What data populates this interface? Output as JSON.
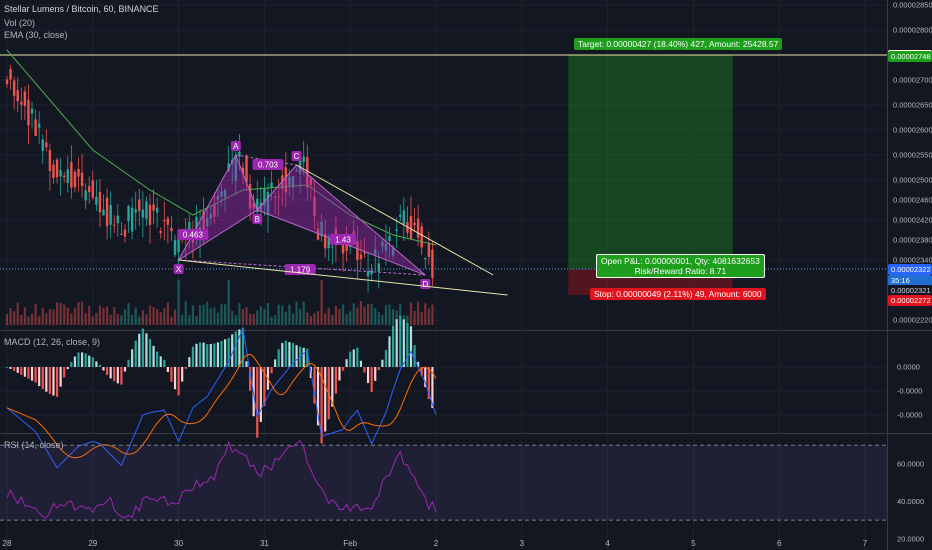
{
  "header": {
    "title": "Stellar Lumens / Bitcoin, 60, BINANCE",
    "vol_label": "Vol (20)",
    "ema_label": "EMA (30, close)",
    "macd_label": "MACD (12, 26, close, 9)",
    "rsi_label": "RSI (14, close)"
  },
  "chart_data": [
    {
      "type": "candlestick",
      "pair": "Stellar Lumens / Bitcoin",
      "timeframe": "60",
      "exchange": "BINANCE",
      "ylim": [
        2.2e-05,
        2.86e-05
      ],
      "y_ticks": [
        "0.00002850",
        "0.00002800",
        "0.00002750",
        "0.00002700",
        "0.00002650",
        "0.00002600",
        "0.00002550",
        "0.00002500",
        "0.00002460",
        "0.00002420",
        "0.00002380",
        "0.00002340",
        "0.00002300",
        "0.00002220"
      ],
      "y_tick_values": [
        2.85e-05,
        2.8e-05,
        2.75e-05,
        2.7e-05,
        2.65e-05,
        2.6e-05,
        2.55e-05,
        2.5e-05,
        2.46e-05,
        2.42e-05,
        2.38e-05,
        2.34e-05,
        2.3e-05,
        2.22e-05
      ],
      "x_ticks": [
        "28",
        "29",
        "30",
        "31",
        "Feb",
        "2",
        "3",
        "4",
        "5",
        "6",
        "7"
      ],
      "x_tick_values": [
        0,
        24,
        48,
        72,
        96,
        120,
        144,
        168,
        192,
        216,
        240
      ],
      "bar_count": 120,
      "anchors": [
        [
          0,
          2.72e-05
        ],
        [
          8,
          2.62e-05
        ],
        [
          14,
          2.52e-05
        ],
        [
          20,
          2.5e-05
        ],
        [
          26,
          2.46e-05
        ],
        [
          32,
          2.4e-05
        ],
        [
          38,
          2.44e-05
        ],
        [
          44,
          2.42e-05
        ],
        [
          48,
          2.36e-05
        ],
        [
          56,
          2.42e-05
        ],
        [
          62,
          2.49e-05
        ],
        [
          66,
          2.55e-05
        ],
        [
          70,
          2.43e-05
        ],
        [
          74,
          2.47e-05
        ],
        [
          80,
          2.51e-05
        ],
        [
          84,
          2.53e-05
        ],
        [
          88,
          2.39e-05
        ],
        [
          94,
          2.37e-05
        ],
        [
          98,
          2.38e-05
        ],
        [
          102,
          2.32e-05
        ],
        [
          106,
          2.35e-05
        ],
        [
          110,
          2.4e-05
        ],
        [
          113,
          2.42e-05
        ],
        [
          117,
          2.37e-05
        ],
        [
          120,
          2.32e-05
        ]
      ],
      "ema_anchors": [
        [
          0,
          2.76e-05
        ],
        [
          12,
          2.66e-05
        ],
        [
          24,
          2.56e-05
        ],
        [
          40,
          2.48e-05
        ],
        [
          52,
          2.43e-05
        ],
        [
          66,
          2.48e-05
        ],
        [
          84,
          2.49e-05
        ],
        [
          96,
          2.43e-05
        ],
        [
          108,
          2.39e-05
        ],
        [
          120,
          2.37e-05
        ]
      ],
      "harmonic_pattern": {
        "points": [
          {
            "label": "X",
            "bar": 48,
            "price": 2.34e-05
          },
          {
            "label": "A",
            "bar": 64,
            "price": 2.55e-05
          },
          {
            "label": "B",
            "bar": 70,
            "price": 2.44e-05
          },
          {
            "label": "C",
            "bar": 81,
            "price": 2.53e-05
          },
          {
            "label": "D",
            "bar": 117,
            "price": 2.31e-05
          }
        ],
        "ratios": [
          {
            "label": "0.703",
            "bar": 73,
            "price": 2.53e-05
          },
          {
            "label": "0.463",
            "bar": 52,
            "price": 2.39e-05
          },
          {
            "label": "1.179",
            "bar": 82,
            "price": 2.32e-05
          },
          {
            "label": "1.43",
            "bar": 94,
            "price": 2.38e-05
          }
        ]
      },
      "trendlines": [
        {
          "from": [
            81,
            2.53e-05
          ],
          "to": [
            136,
            2.31e-05
          ]
        },
        {
          "from": [
            48,
            2.34e-05
          ],
          "to": [
            140,
            2.27e-05
          ]
        }
      ],
      "price_markers": [
        {
          "label": "0.00002750",
          "price": 2.75e-05,
          "color": "#fffde7",
          "text_color": "#131722"
        },
        {
          "label": "0.00002748",
          "price": 2.748e-05,
          "color": "#1d9e1d",
          "text_color": "#ffffff"
        },
        {
          "label": "0.00002322",
          "price": 2.322e-05,
          "color": "#2962ff",
          "text_color": "#ffffff"
        },
        {
          "label": "35:16",
          "price": 2.3e-05,
          "color": "#1e6fd1",
          "text_color": "#ffffff"
        },
        {
          "label": "0.00002321",
          "price": 2.28e-05,
          "color": "#131722",
          "text_color": "#d1d4dc"
        },
        {
          "label": "0.00002272",
          "price": 2.26e-05,
          "color": "#e0141e",
          "text_color": "#ffffff"
        }
      ],
      "position": {
        "entry": 2.322e-05,
        "target_price": 2.75e-05,
        "stop_price": 2.27e-05,
        "start_bar": 157,
        "end_bar": 203,
        "target_label": "Target: 0.00000427 (18.40%) 427, Amount: 25428.57",
        "stop_label": "Stop: 0.00000049 (2.11%) 49, Amount: 6000",
        "pnl_label": "Open P&L: 0.00000001, Qty: 4081632653",
        "rr_label": "Risk/Reward Ratio: 8.71"
      }
    },
    {
      "type": "bar",
      "name": "Vol (20)",
      "pane": "volume"
    },
    {
      "type": "line",
      "name": "MACD (12, 26, close, 9)",
      "y_ticks": [
        "0.0000",
        "-0.0000",
        "-0.0000"
      ],
      "y_tick_values": [
        0,
        -0.4,
        -0.8
      ],
      "ylim": [
        -1.1,
        0.6
      ]
    },
    {
      "type": "line",
      "name": "RSI (14, close)",
      "y_ticks": [
        "60.0000",
        "40.0000",
        "20.0000"
      ],
      "y_tick_values": [
        60,
        40,
        20
      ],
      "ylim": [
        14,
        76
      ],
      "bands": [
        70,
        30
      ],
      "anchors": [
        [
          0,
          44
        ],
        [
          6,
          38
        ],
        [
          10,
          32
        ],
        [
          16,
          40
        ],
        [
          22,
          34
        ],
        [
          28,
          42
        ],
        [
          34,
          30
        ],
        [
          40,
          44
        ],
        [
          46,
          38
        ],
        [
          52,
          48
        ],
        [
          58,
          52
        ],
        [
          62,
          70
        ],
        [
          66,
          64
        ],
        [
          70,
          54
        ],
        [
          76,
          62
        ],
        [
          82,
          72
        ],
        [
          86,
          50
        ],
        [
          90,
          40
        ],
        [
          96,
          36
        ],
        [
          102,
          38
        ],
        [
          106,
          52
        ],
        [
          110,
          64
        ],
        [
          114,
          50
        ],
        [
          117,
          40
        ],
        [
          120,
          36
        ]
      ]
    }
  ]
}
